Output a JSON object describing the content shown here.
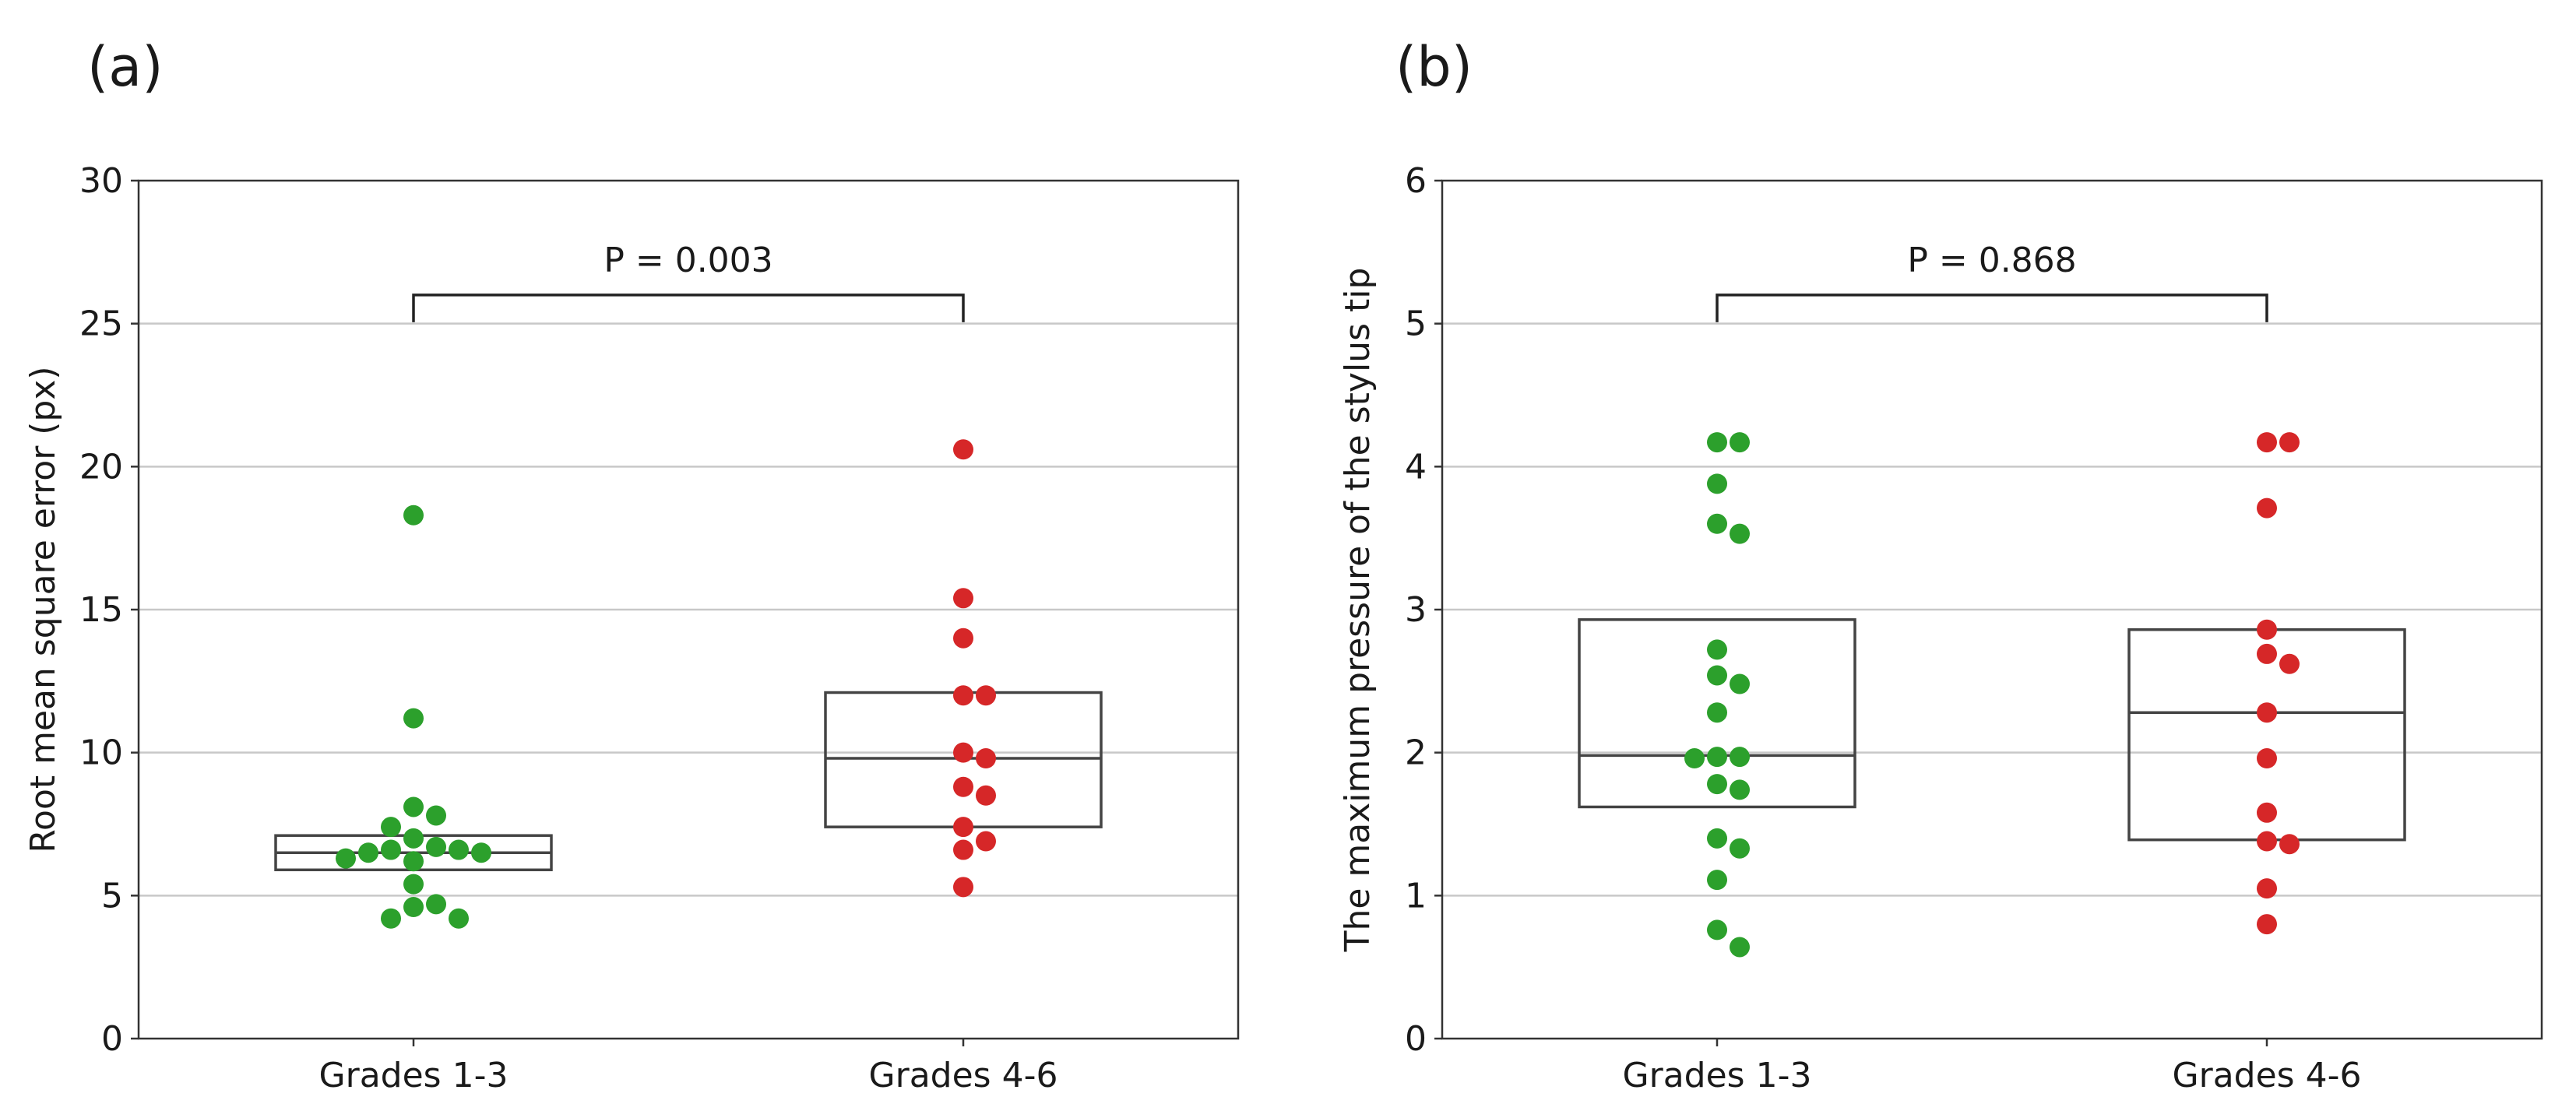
{
  "chart_data": [
    {
      "type": "box+strip",
      "panel": "(a)",
      "title": "",
      "xlabel": "",
      "ylabel": "Root mean square error (px)",
      "ylim": [
        0,
        30
      ],
      "yticks": [
        0,
        5,
        10,
        15,
        20,
        25,
        30
      ],
      "grid": true,
      "categories": [
        "Grades 1-3",
        "Grades 4-6"
      ],
      "colors": [
        "#2ca02c",
        "#d62728"
      ],
      "boxes": [
        {
          "q1": 5.9,
          "median": 6.5,
          "q3": 7.1
        },
        {
          "q1": 7.4,
          "median": 9.8,
          "q3": 12.1
        }
      ],
      "points": [
        [
          18.3,
          11.2,
          8.1,
          7.8,
          7.4,
          7.0,
          6.7,
          6.6,
          6.6,
          6.5,
          6.5,
          6.3,
          6.2,
          5.4,
          4.7,
          4.6,
          4.2,
          4.2
        ],
        [
          20.6,
          15.4,
          14.0,
          12.0,
          12.0,
          10.0,
          9.8,
          8.8,
          8.5,
          7.4,
          6.9,
          6.6,
          5.3
        ]
      ],
      "annotation": {
        "text": "P = 0.003",
        "y": 26
      }
    },
    {
      "type": "box+strip",
      "panel": "(b)",
      "title": "",
      "xlabel": "",
      "ylabel": "The maximum pressure of the stylus tip",
      "ylim": [
        0,
        6
      ],
      "yticks": [
        0,
        1,
        2,
        3,
        4,
        5,
        6
      ],
      "grid": true,
      "categories": [
        "Grades 1-3",
        "Grades 4-6"
      ],
      "colors": [
        "#2ca02c",
        "#d62728"
      ],
      "boxes": [
        {
          "q1": 1.62,
          "median": 1.98,
          "q3": 2.93
        },
        {
          "q1": 1.39,
          "median": 2.28,
          "q3": 2.86
        }
      ],
      "points": [
        [
          4.17,
          4.17,
          3.88,
          3.6,
          3.53,
          2.72,
          2.54,
          2.48,
          2.28,
          1.97,
          1.97,
          1.96,
          1.78,
          1.74,
          1.4,
          1.33,
          1.11,
          0.76,
          0.64
        ],
        [
          4.17,
          4.17,
          3.71,
          2.86,
          2.69,
          2.62,
          2.28,
          1.96,
          1.58,
          1.38,
          1.36,
          1.05,
          0.8
        ]
      ],
      "annotation": {
        "text": "P = 0.868",
        "y": 5.2
      }
    }
  ]
}
